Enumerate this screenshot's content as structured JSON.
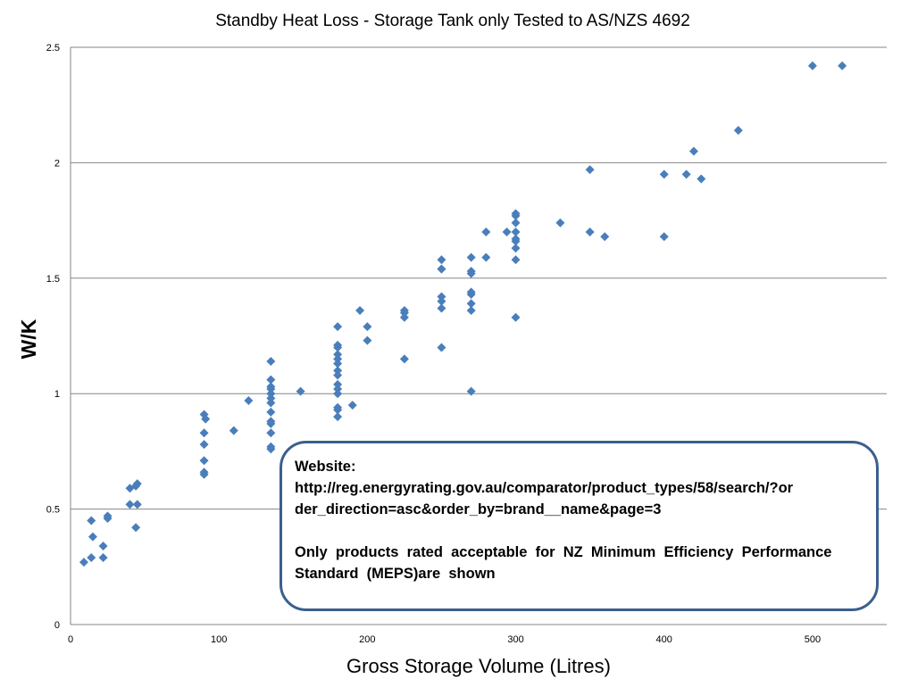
{
  "chart_data": {
    "type": "scatter",
    "title": "Standby Heat Loss - Storage Tank only Tested to AS/NZS 4692",
    "xlabel": "Gross Storage Volume (Litres)",
    "ylabel": "W/K",
    "xlim": [
      0,
      550
    ],
    "ylim": [
      0,
      2.5
    ],
    "xticks": [
      "0",
      "100",
      "200",
      "300",
      "400",
      "500"
    ],
    "yticks": [
      "0",
      "0.5",
      "1",
      "1.5",
      "2",
      "2.5"
    ],
    "grid": "horizontal",
    "marker_color": "#4a7ebb",
    "points": [
      [
        9,
        0.27
      ],
      [
        14,
        0.29
      ],
      [
        14,
        0.45
      ],
      [
        15,
        0.38
      ],
      [
        22,
        0.29
      ],
      [
        22,
        0.34
      ],
      [
        25,
        0.46
      ],
      [
        25,
        0.47
      ],
      [
        40,
        0.59
      ],
      [
        40,
        0.52
      ],
      [
        44,
        0.6
      ],
      [
        45,
        0.61
      ],
      [
        45,
        0.52
      ],
      [
        44,
        0.42
      ],
      [
        90,
        0.91
      ],
      [
        91,
        0.89
      ],
      [
        90,
        0.83
      ],
      [
        90,
        0.78
      ],
      [
        90,
        0.71
      ],
      [
        90,
        0.66
      ],
      [
        90,
        0.65
      ],
      [
        110,
        0.84
      ],
      [
        120,
        0.97
      ],
      [
        135,
        1.14
      ],
      [
        135,
        1.06
      ],
      [
        135,
        1.03
      ],
      [
        135,
        1.02
      ],
      [
        135,
        1.0
      ],
      [
        135,
        0.98
      ],
      [
        135,
        0.96
      ],
      [
        135,
        0.92
      ],
      [
        135,
        0.88
      ],
      [
        135,
        0.87
      ],
      [
        135,
        0.83
      ],
      [
        135,
        0.77
      ],
      [
        135,
        0.76
      ],
      [
        155,
        1.01
      ],
      [
        180,
        1.29
      ],
      [
        180,
        1.21
      ],
      [
        180,
        1.2
      ],
      [
        180,
        1.17
      ],
      [
        180,
        1.15
      ],
      [
        180,
        1.13
      ],
      [
        180,
        1.1
      ],
      [
        180,
        1.08
      ],
      [
        180,
        1.04
      ],
      [
        180,
        1.02
      ],
      [
        180,
        1.0
      ],
      [
        180,
        0.94
      ],
      [
        180,
        0.93
      ],
      [
        180,
        0.9
      ],
      [
        190,
        0.95
      ],
      [
        195,
        1.36
      ],
      [
        200,
        1.29
      ],
      [
        200,
        1.23
      ],
      [
        225,
        1.36
      ],
      [
        225,
        1.35
      ],
      [
        225,
        1.33
      ],
      [
        225,
        1.15
      ],
      [
        250,
        1.58
      ],
      [
        250,
        1.54
      ],
      [
        250,
        1.54
      ],
      [
        250,
        1.42
      ],
      [
        250,
        1.4
      ],
      [
        250,
        1.37
      ],
      [
        250,
        1.2
      ],
      [
        270,
        1.59
      ],
      [
        270,
        1.53
      ],
      [
        270,
        1.52
      ],
      [
        270,
        1.44
      ],
      [
        270,
        1.43
      ],
      [
        270,
        1.39
      ],
      [
        270,
        1.36
      ],
      [
        270,
        1.01
      ],
      [
        280,
        1.7
      ],
      [
        280,
        1.59
      ],
      [
        294,
        1.7
      ],
      [
        300,
        1.78
      ],
      [
        300,
        1.77
      ],
      [
        300,
        1.74
      ],
      [
        300,
        1.7
      ],
      [
        300,
        1.67
      ],
      [
        300,
        1.66
      ],
      [
        300,
        1.63
      ],
      [
        300,
        1.58
      ],
      [
        300,
        1.33
      ],
      [
        330,
        1.74
      ],
      [
        350,
        1.97
      ],
      [
        350,
        1.7
      ],
      [
        360,
        1.68
      ],
      [
        400,
        1.95
      ],
      [
        400,
        1.68
      ],
      [
        420,
        2.05
      ],
      [
        415,
        1.95
      ],
      [
        425,
        1.93
      ],
      [
        450,
        2.14
      ],
      [
        500,
        2.42
      ],
      [
        520,
        2.42
      ]
    ]
  },
  "annotation": {
    "label": "Website:",
    "url_line1": "http://reg.energyrating.gov.au/comparator/product_types/58/search/?or",
    "url_line2": "der_direction=asc&order_by=brand__name&page=3",
    "note_line1": "Only  products  rated  acceptable  for  NZ  Minimum  Efficiency  Performance",
    "note_line2": "Standard  (MEPS)are  shown"
  }
}
